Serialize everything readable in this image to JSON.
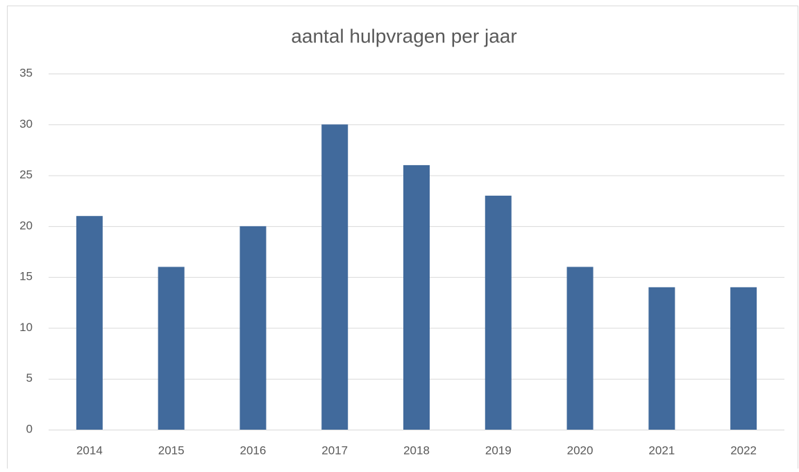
{
  "chart_data": {
    "type": "bar",
    "title": "aantal hulpvragen per jaar",
    "categories": [
      "2014",
      "2015",
      "2016",
      "2017",
      "2018",
      "2019",
      "2020",
      "2021",
      "2022"
    ],
    "values": [
      21,
      16,
      20,
      30,
      26,
      23,
      16,
      14,
      14
    ],
    "color": "#416a9c",
    "ylim": [
      0,
      35
    ],
    "yticks": [
      0,
      5,
      10,
      15,
      20,
      25,
      30,
      35
    ],
    "grid": true
  }
}
